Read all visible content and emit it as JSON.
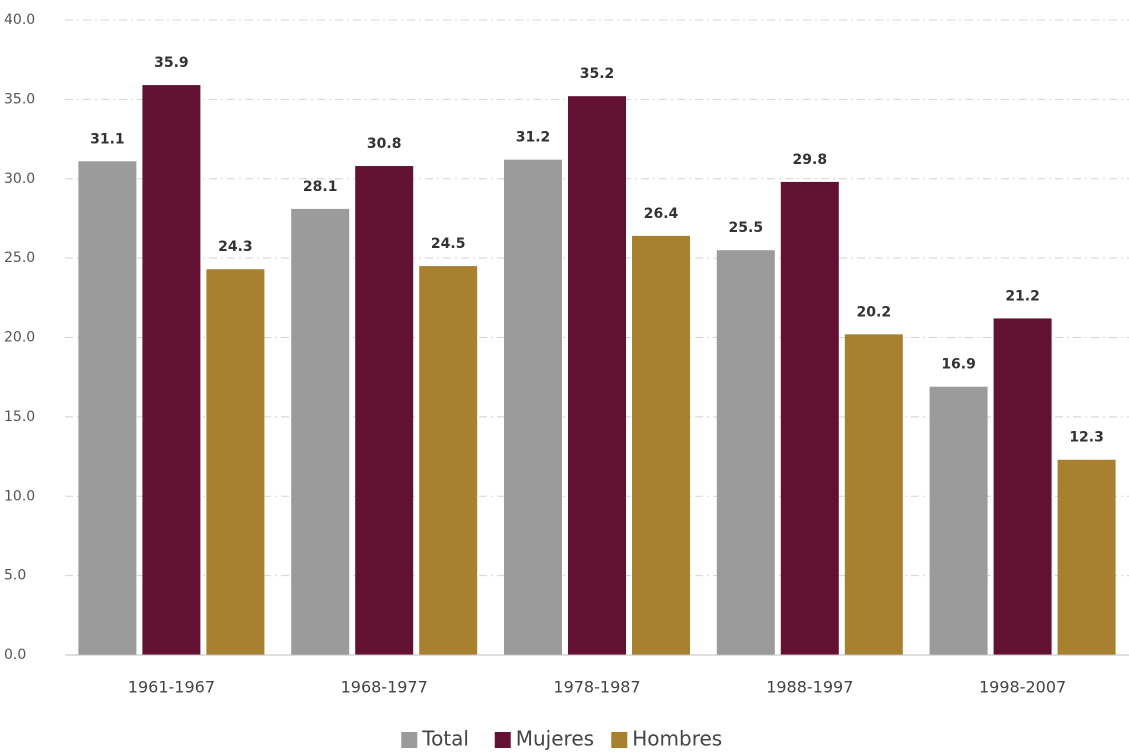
{
  "chart_data": {
    "type": "bar",
    "categories": [
      "1961-1967",
      "1968-1977",
      "1978-1987",
      "1988-1997",
      "1998-2007"
    ],
    "series": [
      {
        "name": "Total",
        "color": "#9b9b9b",
        "values": [
          31.1,
          28.1,
          31.2,
          25.5,
          16.9
        ]
      },
      {
        "name": "Mujeres",
        "color": "#621132",
        "values": [
          35.9,
          30.8,
          35.2,
          29.8,
          21.2
        ]
      },
      {
        "name": "Hombres",
        "color": "#a88130",
        "values": [
          24.3,
          24.5,
          26.4,
          20.2,
          12.3
        ]
      }
    ],
    "ylim": [
      0,
      40
    ],
    "yticks": [
      {
        "value": 0,
        "label": "0.0"
      },
      {
        "value": 5,
        "label": "5.0"
      },
      {
        "value": 10,
        "label": "10.0"
      },
      {
        "value": 15,
        "label": "15.0"
      },
      {
        "value": 20,
        "label": "20.0"
      },
      {
        "value": 25,
        "label": "25.0"
      },
      {
        "value": 30,
        "label": "30.0"
      },
      {
        "value": 35,
        "label": "35.0"
      },
      {
        "value": 40,
        "label": "40.0"
      }
    ],
    "grid": true,
    "legend": "bottom"
  }
}
